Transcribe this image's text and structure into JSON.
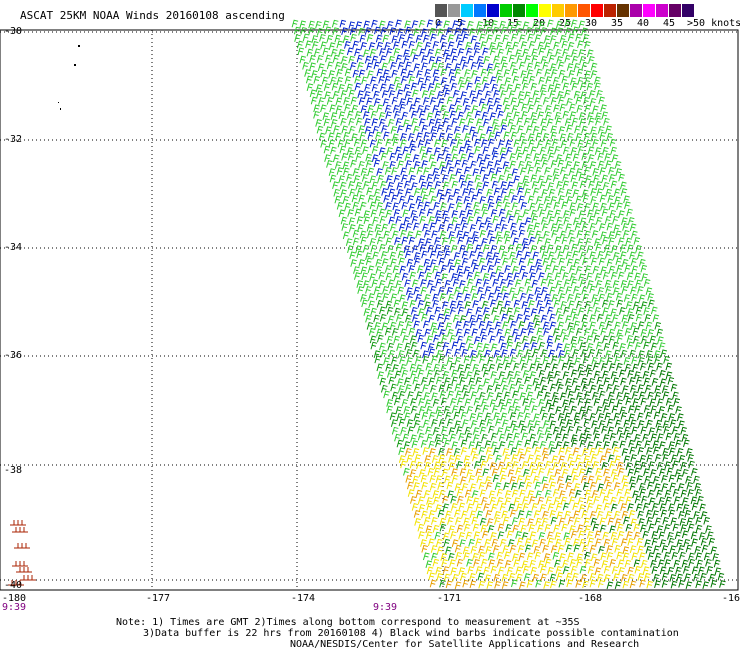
{
  "title": "ASCAT 25KM NOAA Winds 20160108 ascending",
  "legend": {
    "labels": [
      "0",
      "5",
      "10",
      "15",
      "20",
      "25",
      "30",
      "35",
      "40",
      "45",
      ">50 knots"
    ],
    "colors": [
      "#555555",
      "#999999",
      "#00ccff",
      "#0077ff",
      "#0000cc",
      "#00cc00",
      "#008800",
      "#00ff00",
      "#ffff00",
      "#ffcc00",
      "#ff9900",
      "#ff5500",
      "#ff0000",
      "#bb2200",
      "#663300",
      "#aa00aa",
      "#ff00ff",
      "#cc00cc",
      "#660066",
      "#330066"
    ]
  },
  "axes": {
    "lat_labels": [
      "-30",
      "-32",
      "-34",
      "-36",
      "-38",
      "-40"
    ],
    "lon_labels": [
      "-180",
      "-177",
      "-174",
      "-171",
      "-168",
      "-16"
    ]
  },
  "times": [
    "9:39",
    "9:39"
  ],
  "notes": [
    "Note: 1) Times are GMT 2)Times along bottom correspond to measurement at ~35S",
    "3)Data buffer is 22 hrs from 20160108 4) Black wind barbs indicate possible contamination",
    "NOAA/NESDIS/Center for Satellite Applications and Research"
  ]
}
